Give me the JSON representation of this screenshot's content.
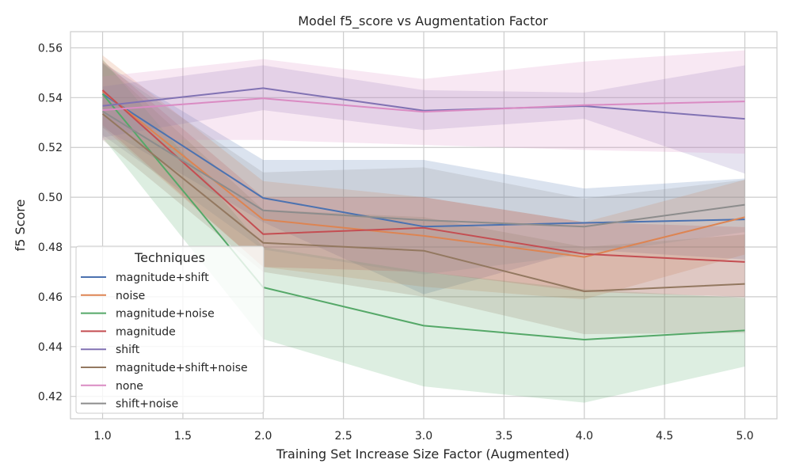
{
  "chart_data": {
    "type": "line",
    "title": "Model f5_score vs Augmentation Factor",
    "xlabel": "Training Set Increase Size Factor (Augmented)",
    "ylabel": "f5 Score",
    "xlim": [
      0.8,
      5.2
    ],
    "ylim": [
      0.411,
      0.5665
    ],
    "xticks": [
      "1.0",
      "1.5",
      "2.0",
      "2.5",
      "3.0",
      "3.5",
      "4.0",
      "4.5",
      "5.0"
    ],
    "yticks": [
      "0.42",
      "0.44",
      "0.46",
      "0.48",
      "0.50",
      "0.52",
      "0.54",
      "0.56"
    ],
    "grid": true,
    "legend": {
      "title": "Techniques",
      "position": "lower-left"
    },
    "x": [
      1,
      2,
      3,
      4,
      5
    ],
    "series": [
      {
        "name": "magnitude+shift",
        "color": "#4c72b0",
        "values": [
          0.5415,
          0.4997,
          0.4882,
          0.4897,
          0.4911
        ],
        "lower": [
          0.528,
          0.49,
          0.461,
          0.479,
          0.475
        ],
        "upper": [
          0.554,
          0.515,
          0.515,
          0.5035,
          0.5075
        ]
      },
      {
        "name": "noise",
        "color": "#dd8452",
        "values": [
          0.5425,
          0.491,
          0.4845,
          0.476,
          0.492
        ],
        "lower": [
          0.528,
          0.472,
          0.464,
          0.459,
          0.477
        ],
        "upper": [
          0.557,
          0.5065,
          0.5,
          0.49,
          0.507
        ]
      },
      {
        "name": "magnitude+noise",
        "color": "#55a868",
        "values": [
          0.5415,
          0.4638,
          0.4484,
          0.4428,
          0.4465
        ],
        "lower": [
          0.524,
          0.443,
          0.424,
          0.4175,
          0.432
        ],
        "upper": [
          0.5555,
          0.48,
          0.47,
          0.463,
          0.4595
        ]
      },
      {
        "name": "magnitude",
        "color": "#c44e52",
        "values": [
          0.543,
          0.4852,
          0.4877,
          0.4772,
          0.474
        ],
        "lower": [
          0.529,
          0.472,
          0.47,
          0.462,
          0.46
        ],
        "upper": [
          0.555,
          0.5,
          0.5,
          0.49,
          0.488
        ]
      },
      {
        "name": "shift",
        "color": "#8172b3",
        "values": [
          0.5367,
          0.5438,
          0.5348,
          0.5366,
          0.5315
        ],
        "lower": [
          0.524,
          0.535,
          0.527,
          0.5315,
          0.5095
        ],
        "upper": [
          0.5445,
          0.553,
          0.543,
          0.542,
          0.553
        ]
      },
      {
        "name": "magnitude+shift+noise",
        "color": "#937860",
        "values": [
          0.5335,
          0.4817,
          0.4785,
          0.4622,
          0.4652
        ],
        "lower": [
          0.523,
          0.47,
          0.46,
          0.445,
          0.4455
        ],
        "upper": [
          0.554,
          0.495,
          0.492,
          0.48,
          0.485
        ]
      },
      {
        "name": "none",
        "color": "#da8bc3",
        "values": [
          0.535,
          0.5397,
          0.5343,
          0.537,
          0.5385
        ],
        "lower": [
          0.523,
          0.523,
          0.521,
          0.519,
          0.5175
        ],
        "upper": [
          0.5485,
          0.5555,
          0.5475,
          0.5545,
          0.559
        ]
      },
      {
        "name": "shift+noise",
        "color": "#8c8c8c",
        "values": [
          0.5345,
          0.4947,
          0.4908,
          0.4882,
          0.497
        ],
        "lower": [
          0.525,
          0.479,
          0.469,
          0.477,
          0.486
        ],
        "upper": [
          0.5535,
          0.51,
          0.512,
          0.4995,
          0.507
        ]
      }
    ]
  }
}
